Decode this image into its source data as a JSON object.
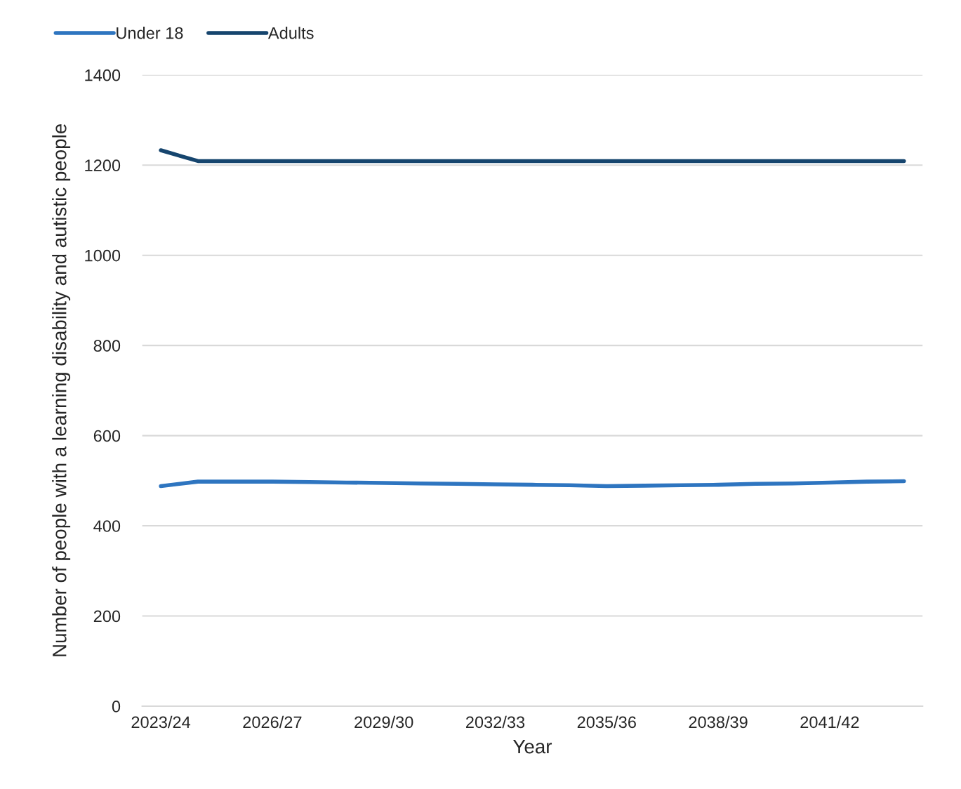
{
  "chart_data": {
    "type": "line",
    "xlabel": "Year",
    "ylabel": "Number of people with a learning disability and autistic people",
    "categories": [
      "2023/24",
      null,
      null,
      "2026/27",
      null,
      null,
      "2029/30",
      null,
      null,
      "2032/33",
      null,
      null,
      "2035/36",
      null,
      null,
      "2038/39",
      null,
      null,
      "2041/42",
      null,
      null
    ],
    "series": [
      {
        "name": "Under 18",
        "color": "#2e75c0",
        "values": [
          488,
          498,
          498,
          498,
          497,
          496,
          495,
          494,
          493,
          492,
          491,
          490,
          488,
          489,
          490,
          491,
          493,
          494,
          496,
          498,
          499
        ]
      },
      {
        "name": "Adults",
        "color": "#16456e",
        "values": [
          1233,
          1209,
          1209,
          1209,
          1209,
          1209,
          1209,
          1209,
          1209,
          1209,
          1209,
          1209,
          1209,
          1209,
          1209,
          1209,
          1209,
          1209,
          1209,
          1209,
          1209
        ]
      }
    ],
    "ylim": [
      0,
      1400
    ],
    "yticks": [
      0,
      200,
      400,
      600,
      800,
      1000,
      1200,
      1400
    ],
    "grid": "y",
    "legend": "top left",
    "marker": "none",
    "line_style": "solid"
  }
}
